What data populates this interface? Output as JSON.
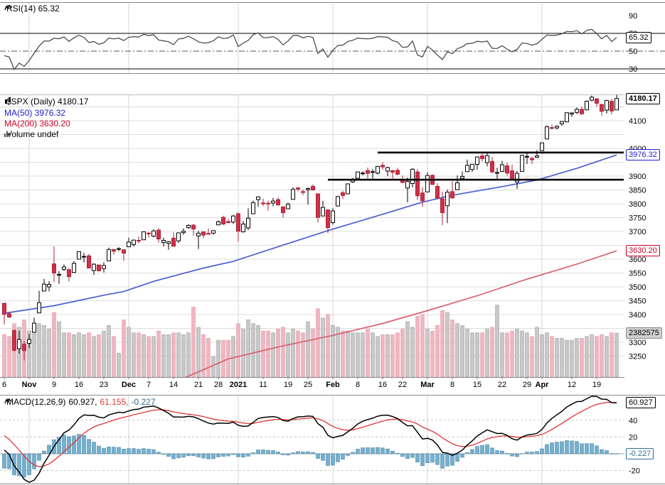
{
  "title": "$SPX (Daily) 4180.17",
  "legend": {
    "rsi_label": "RSI(14) 65.32",
    "spx_label": "$SPX (Daily) 4180.17",
    "ma50_label": "MA(50) 3976.32",
    "ma200_label": "MA(200) 3630.20",
    "volume_label": "Volume undef",
    "macd_title": "MACD(12,26,9)",
    "macd_value": "60.927,",
    "macd_signal": "61.155,",
    "macd_hist": "-0.227"
  },
  "badges": {
    "rsi": "65.32",
    "price": "4180.17",
    "ma50": "3976.32",
    "ma200": "3630.20",
    "volume": "2382575",
    "macd": "60.927",
    "hist": "-0.227"
  },
  "colors": {
    "up_candle": "#ffffff",
    "up_stroke": "#000000",
    "down_candle": "#cf3049",
    "down_stroke": "#b02038",
    "ma50": "#4a5fd1",
    "ma50_label": "#2020cc",
    "ma200": "#d8606f",
    "ma200_label": "#cc0022",
    "vol_up": "#c8c8c8",
    "vol_up_stroke": "#9a9a9a",
    "vol_down": "#f0b6c0",
    "vol_down_stroke": "#d897a2",
    "rsi": "#404040",
    "macd": "#000000",
    "signal": "#e03535",
    "hist_fill": "#74b0cf",
    "hist_stroke": "#4e87a3",
    "hist_label": "#2f6f96",
    "grid": "#dcdcdc",
    "grid_month": "#d4d4d4",
    "panel_border": "#8a8a8a",
    "annotation": "#000000",
    "badge_vol_bg": "#d0d0d0"
  },
  "chart_data": {
    "type": "candlestick",
    "symbol": "$SPX",
    "timeframe": "Daily",
    "last_price": 4180.17,
    "x_ticks": [
      {
        "i": 0,
        "t": "6"
      },
      {
        "i": 5,
        "t": "Nov",
        "m": true
      },
      {
        "i": 10,
        "t": "9"
      },
      {
        "i": 15,
        "t": "16"
      },
      {
        "i": 20,
        "t": "23"
      },
      {
        "i": 25,
        "t": "Dec",
        "m": true
      },
      {
        "i": 29,
        "t": "7"
      },
      {
        "i": 34,
        "t": "14"
      },
      {
        "i": 39,
        "t": "21"
      },
      {
        "i": 43,
        "t": "28"
      },
      {
        "i": 47,
        "t": "2021",
        "m": true
      },
      {
        "i": 52,
        "t": "11"
      },
      {
        "i": 57,
        "t": "19"
      },
      {
        "i": 61,
        "t": "25"
      },
      {
        "i": 66,
        "t": "Feb",
        "m": true
      },
      {
        "i": 71,
        "t": "8"
      },
      {
        "i": 76,
        "t": "16"
      },
      {
        "i": 80,
        "t": "22"
      },
      {
        "i": 85,
        "t": "Mar",
        "m": true
      },
      {
        "i": 90,
        "t": "8"
      },
      {
        "i": 95,
        "t": "15"
      },
      {
        "i": 100,
        "t": "22"
      },
      {
        "i": 105,
        "t": "29"
      },
      {
        "i": 108,
        "t": "Apr",
        "m": true
      },
      {
        "i": 114,
        "t": "12"
      },
      {
        "i": 119,
        "t": "19"
      }
    ],
    "rsi_panel": {
      "label": "RSI(14)",
      "value": 65.32,
      "yticks": [
        90,
        70,
        50,
        30
      ],
      "upper_band": 70,
      "lower_band": 30,
      "mid_band": 50
    },
    "price_panel": {
      "yticks": [
        4100,
        4000,
        3900,
        3850,
        3800,
        3750,
        3700,
        3600,
        3550,
        3500,
        3450,
        3400,
        3300,
        3250
      ],
      "grid_min": 3250,
      "grid_max": 4150,
      "grid_step": 50,
      "last_volume": 2382575,
      "ma50": {
        "label": "MA(50)",
        "value": 3976.32,
        "points": [
          [
            0,
            3405
          ],
          [
            10,
            3432
          ],
          [
            20,
            3470
          ],
          [
            24,
            3483
          ],
          [
            30,
            3520
          ],
          [
            40,
            3568
          ],
          [
            46,
            3592
          ],
          [
            55,
            3645
          ],
          [
            65,
            3703
          ],
          [
            75,
            3757
          ],
          [
            84,
            3806
          ],
          [
            90,
            3831
          ],
          [
            100,
            3862
          ],
          [
            107,
            3886
          ],
          [
            115,
            3928
          ],
          [
            123,
            3976.32
          ]
        ]
      },
      "ma200": {
        "label": "MA(200)",
        "value": 3630.2,
        "points": [
          [
            36,
            3170
          ],
          [
            45,
            3240
          ],
          [
            55,
            3283
          ],
          [
            66,
            3325
          ],
          [
            76,
            3368
          ],
          [
            85,
            3414
          ],
          [
            95,
            3468
          ],
          [
            105,
            3528
          ],
          [
            115,
            3582
          ],
          [
            123,
            3630.2
          ]
        ]
      },
      "trendlines": [
        {
          "price": 3985,
          "from_index": 75
        },
        {
          "price": 3887,
          "from_index": 65
        }
      ],
      "ohlc": [
        [
          3441,
          3441,
          3364,
          3401
        ],
        [
          3403,
          3409,
          3388,
          3391
        ],
        [
          3343,
          3343,
          3268,
          3271
        ],
        [
          3277,
          3341,
          3259,
          3310
        ],
        [
          3293,
          3304,
          3234,
          3270
        ],
        [
          3296,
          3330,
          3279,
          3310
        ],
        [
          3336,
          3389,
          3336,
          3369
        ],
        [
          3406,
          3486,
          3405,
          3443
        ],
        [
          3485,
          3529,
          3485,
          3510
        ],
        [
          3500,
          3521,
          3484,
          3509
        ],
        [
          3583,
          3646,
          3517,
          3550
        ],
        [
          3543,
          3557,
          3511,
          3545
        ],
        [
          3563,
          3581,
          3557,
          3572
        ],
        [
          3562,
          3569,
          3519,
          3537
        ],
        [
          3552,
          3593,
          3552,
          3585
        ],
        [
          3600,
          3628,
          3600,
          3627
        ],
        [
          3610,
          3623,
          3588,
          3610
        ],
        [
          3612,
          3619,
          3567,
          3568
        ],
        [
          3559,
          3585,
          3543,
          3582
        ],
        [
          3579,
          3581,
          3556,
          3558
        ],
        [
          3566,
          3589,
          3552,
          3577
        ],
        [
          3594,
          3642,
          3594,
          3635
        ],
        [
          3635,
          3635,
          3617,
          3629
        ],
        [
          3638,
          3644,
          3629,
          3638
        ],
        [
          3634,
          3634,
          3594,
          3622
        ],
        [
          3645,
          3678,
          3645,
          3662
        ],
        [
          3653,
          3670,
          3645,
          3669
        ],
        [
          3668,
          3682,
          3657,
          3667
        ],
        [
          3670,
          3700,
          3670,
          3699
        ],
        [
          3694,
          3698,
          3679,
          3692
        ],
        [
          3683,
          3708,
          3679,
          3702
        ],
        [
          3705,
          3712,
          3660,
          3673
        ],
        [
          3660,
          3678,
          3646,
          3668
        ],
        [
          3657,
          3665,
          3634,
          3663
        ],
        [
          3676,
          3697,
          3645,
          3647
        ],
        [
          3666,
          3695,
          3659,
          3695
        ],
        [
          3696,
          3712,
          3688,
          3701
        ],
        [
          3714,
          3726,
          3710,
          3722
        ],
        [
          3723,
          3727,
          3685,
          3709
        ],
        [
          3684,
          3703,
          3637,
          3694
        ],
        [
          3699,
          3699,
          3676,
          3687
        ],
        [
          3693,
          3711,
          3689,
          3690
        ],
        [
          3694,
          3704,
          3689,
          3703
        ],
        [
          3724,
          3740,
          3723,
          3735
        ],
        [
          3751,
          3757,
          3723,
          3727
        ],
        [
          3736,
          3745,
          3730,
          3732
        ],
        [
          3734,
          3760,
          3727,
          3756
        ],
        [
          3764,
          3770,
          3663,
          3701
        ],
        [
          3699,
          3738,
          3696,
          3727
        ],
        [
          3713,
          3784,
          3705,
          3748
        ],
        [
          3764,
          3812,
          3764,
          3804
        ],
        [
          3815,
          3827,
          3789,
          3825
        ],
        [
          3803,
          3818,
          3792,
          3800
        ],
        [
          3802,
          3811,
          3776,
          3801
        ],
        [
          3803,
          3821,
          3791,
          3810
        ],
        [
          3815,
          3824,
          3793,
          3796
        ],
        [
          3789,
          3789,
          3750,
          3768
        ],
        [
          3782,
          3804,
          3781,
          3799
        ],
        [
          3816,
          3860,
          3816,
          3852
        ],
        [
          3857,
          3861,
          3845,
          3853
        ],
        [
          3844,
          3852,
          3831,
          3841
        ],
        [
          3851,
          3859,
          3797,
          3855
        ],
        [
          3863,
          3870,
          3847,
          3850
        ],
        [
          3836,
          3836,
          3732,
          3751
        ],
        [
          3756,
          3811,
          3756,
          3787
        ],
        [
          3778,
          3778,
          3694,
          3714
        ],
        [
          3732,
          3784,
          3725,
          3774
        ],
        [
          3792,
          3829,
          3792,
          3826
        ],
        [
          3840,
          3847,
          3817,
          3830
        ],
        [
          3836,
          3872,
          3836,
          3872
        ],
        [
          3879,
          3894,
          3875,
          3887
        ],
        [
          3892,
          3916,
          3892,
          3915
        ],
        [
          3911,
          3918,
          3903,
          3911
        ],
        [
          3920,
          3931,
          3884,
          3910
        ],
        [
          3916,
          3926,
          3890,
          3916
        ],
        [
          3911,
          3937,
          3905,
          3935
        ],
        [
          3939,
          3950,
          3923,
          3933
        ],
        [
          3918,
          3934,
          3900,
          3931
        ],
        [
          3920,
          3922,
          3886,
          3914
        ],
        [
          3921,
          3930,
          3903,
          3907
        ],
        [
          3885,
          3902,
          3874,
          3877
        ],
        [
          3857,
          3895,
          3805,
          3881
        ],
        [
          3873,
          3928,
          3859,
          3925
        ],
        [
          3915,
          3925,
          3814,
          3829
        ],
        [
          3839,
          3861,
          3789,
          3811
        ],
        [
          3843,
          3914,
          3843,
          3902
        ],
        [
          3903,
          3906,
          3868,
          3870
        ],
        [
          3863,
          3874,
          3819,
          3820
        ],
        [
          3818,
          3844,
          3723,
          3768
        ],
        [
          3793,
          3851,
          3730,
          3842
        ],
        [
          3844,
          3881,
          3819,
          3821
        ],
        [
          3851,
          3903,
          3851,
          3876
        ],
        [
          3892,
          3917,
          3885,
          3899
        ],
        [
          3916,
          3960,
          3916,
          3939
        ],
        [
          3924,
          3944,
          3915,
          3943
        ],
        [
          3942,
          3970,
          3923,
          3969
        ],
        [
          3973,
          3981,
          3953,
          3963
        ],
        [
          3949,
          3984,
          3935,
          3974
        ],
        [
          3953,
          3969,
          3911,
          3915
        ],
        [
          3913,
          3930,
          3886,
          3913
        ],
        [
          3917,
          3955,
          3914,
          3941
        ],
        [
          3937,
          3949,
          3901,
          3911
        ],
        [
          3919,
          3942,
          3889,
          3889
        ],
        [
          3879,
          3919,
          3854,
          3910
        ],
        [
          3917,
          3978,
          3917,
          3975
        ],
        [
          3969,
          3982,
          3944,
          3971
        ],
        [
          3964,
          3970,
          3944,
          3959
        ],
        [
          3968,
          3994,
          3966,
          3973
        ],
        [
          3992,
          4020,
          3992,
          4020
        ],
        [
          4034,
          4083,
          4034,
          4078
        ],
        [
          4075,
          4086,
          4068,
          4074
        ],
        [
          4074,
          4083,
          4068,
          4080
        ],
        [
          4089,
          4098,
          4082,
          4097
        ],
        [
          4096,
          4129,
          4095,
          4129
        ],
        [
          4124,
          4131,
          4114,
          4128
        ],
        [
          4130,
          4148,
          4124,
          4141
        ],
        [
          4141,
          4151,
          4120,
          4125
        ],
        [
          4139,
          4173,
          4139,
          4170
        ],
        [
          4174,
          4191,
          4170,
          4185
        ],
        [
          4179,
          4180,
          4150,
          4163
        ],
        [
          4159,
          4159,
          4118,
          4134
        ],
        [
          4138,
          4175,
          4126,
          4173
        ],
        [
          4170,
          4179,
          4123,
          4135
        ],
        [
          4139,
          4194,
          4139,
          4180.17
        ]
      ],
      "volume": [
        2300000,
        2200000,
        2900000,
        2700000,
        3100000,
        2500000,
        2600000,
        2900000,
        2800000,
        2600000,
        3500000,
        3000000,
        2400000,
        2400000,
        2300000,
        2400000,
        2300000,
        2400000,
        2200000,
        2300000,
        2500000,
        2800000,
        2200000,
        1300000,
        3100000,
        2700000,
        2400000,
        2400000,
        2300000,
        2200000,
        2200000,
        2500000,
        2300000,
        2300000,
        2400000,
        2400000,
        2300000,
        2400000,
        3800000,
        2700000,
        2300000,
        2100000,
        1100000,
        2000000,
        2000000,
        2000000,
        2200000,
        2900000,
        2600000,
        3100000,
        2900000,
        2800000,
        2500000,
        2500000,
        2400000,
        2600000,
        2700000,
        2400000,
        2600000,
        2500000,
        2400000,
        3000000,
        2600000,
        3700000,
        3200000,
        3400000,
        2800000,
        2700000,
        2500000,
        2500000,
        2400000,
        2400000,
        2400000,
        2600000,
        2400000,
        2200000,
        2300000,
        2300000,
        2300000,
        2400000,
        2600000,
        3000000,
        2700000,
        3300000,
        3400000,
        2600000,
        2500000,
        2800000,
        3600000,
        3500000,
        3100000,
        2900000,
        2800000,
        2600000,
        2400000,
        2400000,
        2400000,
        2600000,
        2700000,
        3900000,
        2400000,
        2400000,
        2500000,
        2600000,
        2500000,
        2400000,
        2200000,
        2700000,
        2300000,
        2400000,
        2200000,
        2100000,
        2100000,
        2000000,
        2000000,
        2100000,
        2100000,
        2200000,
        2300000,
        2200000,
        2300000,
        2200000,
        2400000,
        2382575
      ]
    },
    "macd_panel": {
      "label": "MACD(12,26,9)",
      "macd": 60.927,
      "signal": 61.155,
      "hist": -0.227,
      "yticks": [
        40,
        20,
        -20
      ]
    }
  }
}
